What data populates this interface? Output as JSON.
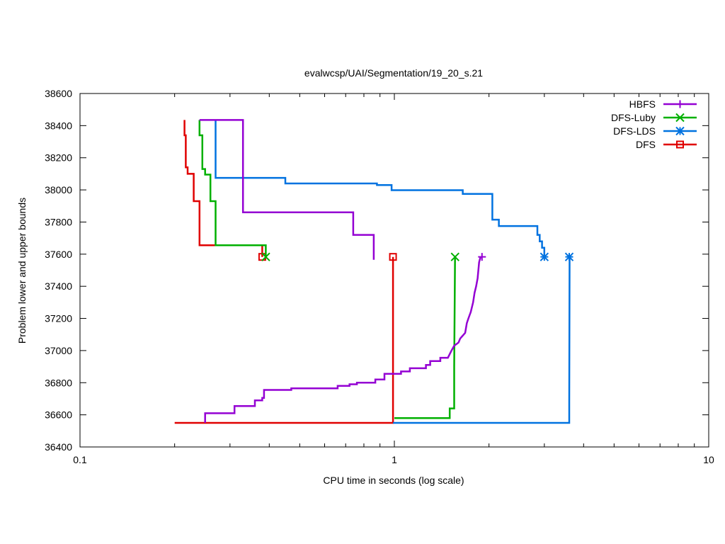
{
  "chart_data": {
    "type": "line",
    "title": "evalwcsp/UAI/Segmentation/19_20_s.21",
    "xlabel": "CPU time in seconds (log scale)",
    "ylabel": "Problem lower and upper bounds",
    "xscale": "log",
    "xlim": [
      0.1,
      10
    ],
    "ylim": [
      36400,
      38600
    ],
    "xticks": [
      0.1,
      1,
      10
    ],
    "xtick_labels": [
      "0.1",
      "1",
      "10"
    ],
    "yticks": [
      36400,
      36600,
      36800,
      37000,
      37200,
      37400,
      37600,
      37800,
      38000,
      38200,
      38400,
      38600
    ],
    "ytick_labels": [
      "36400",
      "36600",
      "36800",
      "37000",
      "37200",
      "37400",
      "37600",
      "37800",
      "38000",
      "38200",
      "38400",
      "38600"
    ],
    "grid": false,
    "legend_position": "top-right",
    "series": [
      {
        "name": "HBFS",
        "color": "#9400d3",
        "marker": "plus",
        "upper": [
          [
            0.24,
            38435
          ],
          [
            0.33,
            38435
          ],
          [
            0.33,
            37860
          ],
          [
            0.74,
            37860
          ],
          [
            0.74,
            37720
          ],
          [
            0.86,
            37720
          ],
          [
            0.86,
            37565
          ]
        ],
        "lower": [
          [
            0.25,
            36550
          ],
          [
            0.25,
            36610
          ],
          [
            0.31,
            36610
          ],
          [
            0.31,
            36655
          ],
          [
            0.36,
            36655
          ],
          [
            0.36,
            36690
          ],
          [
            0.38,
            36690
          ],
          [
            0.38,
            36705
          ],
          [
            0.385,
            36705
          ],
          [
            0.385,
            36755
          ],
          [
            0.47,
            36755
          ],
          [
            0.47,
            36765
          ],
          [
            0.66,
            36765
          ],
          [
            0.66,
            36780
          ],
          [
            0.72,
            36780
          ],
          [
            0.72,
            36790
          ],
          [
            0.76,
            36790
          ],
          [
            0.76,
            36800
          ],
          [
            0.87,
            36800
          ],
          [
            0.87,
            36820
          ],
          [
            0.93,
            36820
          ],
          [
            0.93,
            36855
          ],
          [
            1.05,
            36855
          ],
          [
            1.05,
            36870
          ],
          [
            1.12,
            36870
          ],
          [
            1.12,
            36890
          ],
          [
            1.26,
            36890
          ],
          [
            1.26,
            36910
          ],
          [
            1.3,
            36910
          ],
          [
            1.3,
            36935
          ],
          [
            1.4,
            36935
          ],
          [
            1.4,
            36955
          ],
          [
            1.48,
            36955
          ],
          [
            1.52,
            37000
          ],
          [
            1.55,
            37030
          ],
          [
            1.6,
            37050
          ],
          [
            1.62,
            37075
          ],
          [
            1.68,
            37110
          ],
          [
            1.7,
            37170
          ],
          [
            1.72,
            37200
          ],
          [
            1.75,
            37240
          ],
          [
            1.78,
            37300
          ],
          [
            1.8,
            37360
          ],
          [
            1.82,
            37400
          ],
          [
            1.84,
            37450
          ],
          [
            1.86,
            37550
          ],
          [
            1.88,
            37583
          ]
        ],
        "solution": [
          [
            1.9,
            37583
          ]
        ]
      },
      {
        "name": "DFS-Luby",
        "color": "#00b000",
        "marker": "x",
        "upper": [
          [
            0.24,
            38435
          ],
          [
            0.24,
            38340
          ],
          [
            0.245,
            38340
          ],
          [
            0.245,
            38130
          ],
          [
            0.25,
            38130
          ],
          [
            0.25,
            38095
          ],
          [
            0.26,
            38095
          ],
          [
            0.26,
            37930
          ],
          [
            0.27,
            37930
          ],
          [
            0.27,
            37655
          ],
          [
            0.39,
            37655
          ],
          [
            0.39,
            37583
          ]
        ],
        "lower": [
          [
            1.0,
            36580
          ],
          [
            1.5,
            36580
          ],
          [
            1.5,
            36640
          ],
          [
            1.55,
            36640
          ],
          [
            1.55,
            36900
          ],
          [
            1.56,
            37583
          ]
        ],
        "solution": [
          [
            0.39,
            37583
          ],
          [
            1.56,
            37583
          ]
        ]
      },
      {
        "name": "DFS-LDS",
        "color": "#0072e0",
        "marker": "star",
        "upper": [
          [
            0.27,
            38435
          ],
          [
            0.27,
            38075
          ],
          [
            0.45,
            38075
          ],
          [
            0.45,
            38040
          ],
          [
            0.88,
            38040
          ],
          [
            0.88,
            38030
          ],
          [
            0.98,
            38030
          ],
          [
            0.98,
            37998
          ],
          [
            1.65,
            37998
          ],
          [
            1.65,
            37975
          ],
          [
            2.05,
            37975
          ],
          [
            2.05,
            37815
          ],
          [
            2.15,
            37815
          ],
          [
            2.15,
            37775
          ],
          [
            2.85,
            37775
          ],
          [
            2.85,
            37720
          ],
          [
            2.9,
            37720
          ],
          [
            2.9,
            37680
          ],
          [
            2.95,
            37680
          ],
          [
            2.95,
            37640
          ],
          [
            3.0,
            37640
          ],
          [
            3.0,
            37583
          ]
        ],
        "lower": [
          [
            0.99,
            36550
          ],
          [
            3.6,
            36550
          ],
          [
            3.6,
            36680
          ],
          [
            3.61,
            37583
          ]
        ],
        "solution": [
          [
            3.0,
            37583
          ],
          [
            3.6,
            37583
          ]
        ]
      },
      {
        "name": "DFS",
        "color": "#e00000",
        "marker": "square",
        "upper": [
          [
            0.215,
            38435
          ],
          [
            0.215,
            38340
          ],
          [
            0.217,
            38340
          ],
          [
            0.217,
            38140
          ],
          [
            0.22,
            38140
          ],
          [
            0.22,
            38100
          ],
          [
            0.23,
            38100
          ],
          [
            0.23,
            37930
          ],
          [
            0.24,
            37930
          ],
          [
            0.24,
            37655
          ],
          [
            0.38,
            37655
          ],
          [
            0.38,
            37583
          ]
        ],
        "lower": [
          [
            0.2,
            36550
          ],
          [
            0.99,
            36550
          ],
          [
            0.99,
            37583
          ]
        ],
        "solution": [
          [
            0.38,
            37583
          ],
          [
            0.99,
            37583
          ]
        ]
      }
    ]
  }
}
